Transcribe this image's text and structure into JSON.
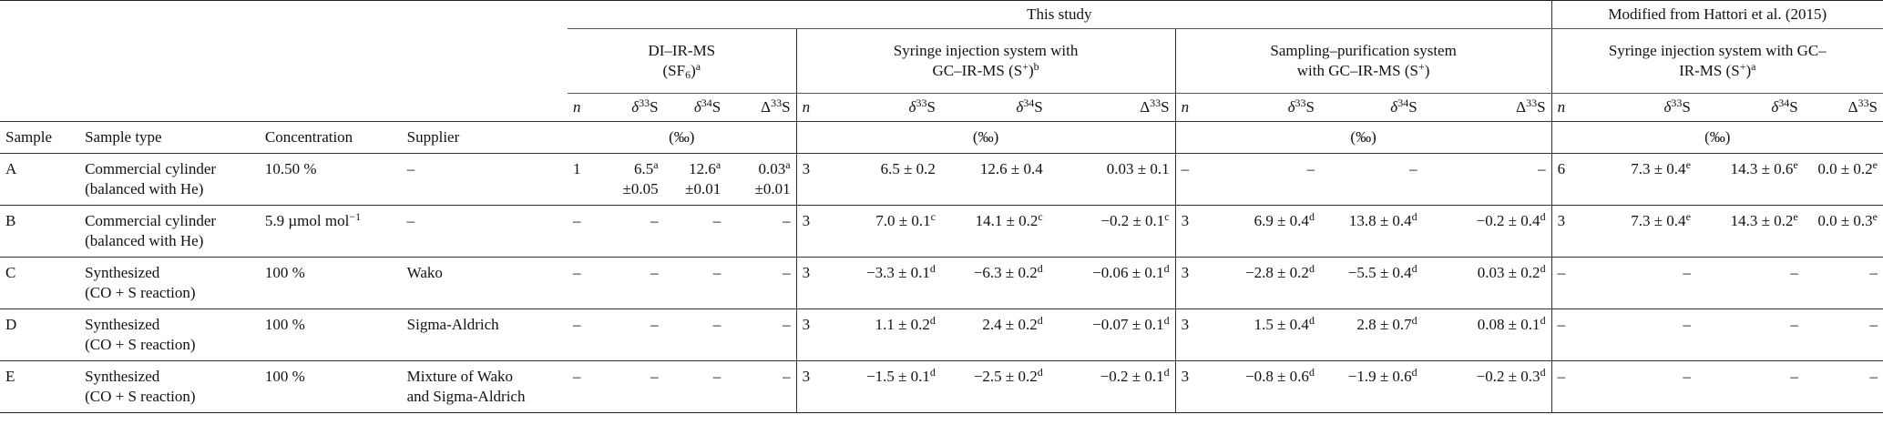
{
  "header": {
    "this_study": "This study",
    "modified_from": "Modified from Hattori et al. (2015)",
    "group_di": [
      "DI–IR-MS",
      "(SF6)a"
    ],
    "group_syringe": [
      "Syringe injection system with",
      "GC–IR-MS (S+)b"
    ],
    "group_sampling": [
      "Sampling–purification system",
      "with GC–IR-MS (S+)"
    ],
    "group_hattori": [
      "Syringe injection system with GC–",
      "IR-MS (S+)a"
    ],
    "col_sample": "Sample",
    "col_sample_type": "Sample type",
    "col_concentration": "Concentration",
    "col_supplier": "Supplier",
    "col_n": "n",
    "col_d33": "δ33S",
    "col_d34": "δ34S",
    "col_D33": "Δ33S",
    "unit_permil": "(‰)"
  },
  "rows": [
    {
      "sample": "A",
      "type": [
        "Commercial cylinder",
        "(balanced with He)"
      ],
      "concentration": "10.50 %",
      "supplier": [
        "–"
      ],
      "di": {
        "n": "1",
        "d33": [
          "6.5a",
          "±0.05"
        ],
        "d34": [
          "12.6a",
          "±0.01"
        ],
        "D33": [
          "0.03a",
          "±0.01"
        ]
      },
      "syr": {
        "n": "3",
        "d33": "6.5 ± 0.2",
        "d34": "12.6 ± 0.4",
        "D33": "0.03 ± 0.1"
      },
      "samp": {
        "n": "–",
        "d33": "–",
        "d34": "–",
        "D33": "–"
      },
      "hat": {
        "n": "6",
        "d33": "7.3 ± 0.4e",
        "d34": "14.3 ± 0.6e",
        "D33": "0.0 ± 0.2e"
      }
    },
    {
      "sample": "B",
      "type": [
        "Commercial cylinder",
        "(balanced with He)"
      ],
      "concentration": "5.9 µmol mol−1",
      "supplier": [
        "–"
      ],
      "di": {
        "n": "–",
        "d33": [
          "–"
        ],
        "d34": [
          "–"
        ],
        "D33": [
          "–"
        ]
      },
      "syr": {
        "n": "3",
        "d33": "7.0 ± 0.1c",
        "d34": "14.1 ± 0.2c",
        "D33": "−0.2 ± 0.1c"
      },
      "samp": {
        "n": "3",
        "d33": "6.9 ± 0.4d",
        "d34": "13.8 ± 0.4d",
        "D33": "−0.2 ± 0.4d"
      },
      "hat": {
        "n": "3",
        "d33": "7.3 ± 0.4e",
        "d34": "14.3 ± 0.2e",
        "D33": "0.0 ± 0.3e"
      }
    },
    {
      "sample": "C",
      "type": [
        "Synthesized",
        "(CO + S reaction)"
      ],
      "concentration": "100 %",
      "supplier": [
        "Wako"
      ],
      "di": {
        "n": "–",
        "d33": [
          "–"
        ],
        "d34": [
          "–"
        ],
        "D33": [
          "–"
        ]
      },
      "syr": {
        "n": "3",
        "d33": "−3.3 ± 0.1d",
        "d34": "−6.3 ± 0.2d",
        "D33": "−0.06 ± 0.1d"
      },
      "samp": {
        "n": "3",
        "d33": "−2.8 ± 0.2d",
        "d34": "−5.5 ± 0.4d",
        "D33": "0.03 ± 0.2d"
      },
      "hat": {
        "n": "–",
        "d33": "–",
        "d34": "–",
        "D33": "–"
      }
    },
    {
      "sample": "D",
      "type": [
        "Synthesized",
        "(CO + S reaction)"
      ],
      "concentration": "100 %",
      "supplier": [
        "Sigma-Aldrich"
      ],
      "di": {
        "n": "–",
        "d33": [
          "–"
        ],
        "d34": [
          "–"
        ],
        "D33": [
          "–"
        ]
      },
      "syr": {
        "n": "3",
        "d33": "1.1 ± 0.2d",
        "d34": "2.4 ± 0.2d",
        "D33": "−0.07 ± 0.1d"
      },
      "samp": {
        "n": "3",
        "d33": "1.5 ± 0.4d",
        "d34": "2.8 ± 0.7d",
        "D33": "0.08 ± 0.1d"
      },
      "hat": {
        "n": "–",
        "d33": "–",
        "d34": "–",
        "D33": "–"
      }
    },
    {
      "sample": "E",
      "type": [
        "Synthesized",
        "(CO + S reaction)"
      ],
      "concentration": "100 %",
      "supplier": [
        "Mixture of Wako",
        "and Sigma-Aldrich"
      ],
      "di": {
        "n": "–",
        "d33": [
          "–"
        ],
        "d34": [
          "–"
        ],
        "D33": [
          "–"
        ]
      },
      "syr": {
        "n": "3",
        "d33": "−1.5 ± 0.1d",
        "d34": "−2.5 ± 0.2d",
        "D33": "−0.2 ± 0.1d"
      },
      "samp": {
        "n": "3",
        "d33": "−0.8 ± 0.6d",
        "d34": "−1.9 ± 0.6d",
        "D33": "−0.2 ± 0.3d"
      },
      "hat": {
        "n": "–",
        "d33": "–",
        "d34": "–",
        "D33": "–"
      }
    }
  ]
}
